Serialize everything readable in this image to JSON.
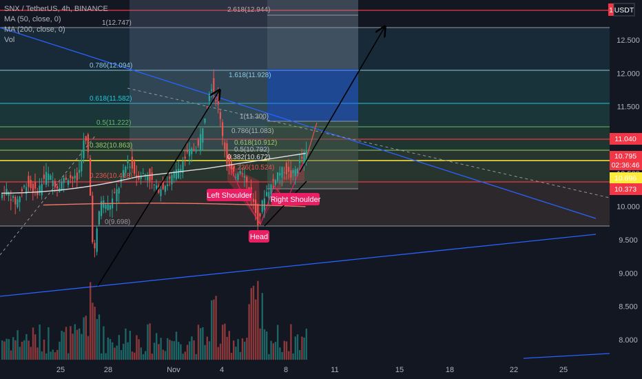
{
  "legend": {
    "symbol": "SNX / TetherUS, 4h, BINANCE",
    "ma50": "MA (50, close, 0)",
    "ma200": "MA (200, close, 0)",
    "vol": "Vol"
  },
  "currency": "USDT",
  "currency_badge": "1",
  "colors": {
    "background": "#131722",
    "up": "#26a69a",
    "down": "#ef5350",
    "ma50": "#e0e0e0",
    "ma200": "#f2776a",
    "trendline": "#2962ff",
    "arrow": "#000000",
    "price_tag": "#f23645",
    "label_bg": "#e91e63"
  },
  "chart_data": {
    "type": "candlestick",
    "x_axis_ticks": [
      "25",
      "28",
      "Nov",
      "4",
      "8",
      "11",
      "15",
      "18",
      "22",
      "25"
    ],
    "y_axis_ticks": [
      "8.000",
      "8.500",
      "9.000",
      "9.500",
      "10.000",
      "10.500",
      "11.000",
      "11.500",
      "12.000",
      "12.500"
    ],
    "ylim": [
      7.7,
      13.1
    ],
    "price_tags": [
      {
        "value": "11.040",
        "color": "#f23645"
      },
      {
        "value": "10.795",
        "color": "#f23645",
        "countdown": "02:36:46"
      },
      {
        "value": "10.696",
        "color": "#ffeb3b"
      },
      {
        "value": "10.373",
        "color": "#f23645"
      }
    ],
    "fib_left": [
      {
        "label": "0.786(12.094)",
        "price": 12.094
      },
      {
        "label": "0.618(11.582)",
        "price": 11.582
      },
      {
        "label": "0.5(11.222)",
        "price": 11.222
      },
      {
        "label": "0.382(10.863)",
        "price": 10.863
      },
      {
        "label": "0.236(10.418)",
        "price": 10.418
      },
      {
        "label": "0(9.698)",
        "price": 9.698
      }
    ],
    "fib_top": [
      {
        "label": "2.618(12.944)",
        "price": 12.944
      },
      {
        "label": "1(12.747)",
        "price": 12.747
      }
    ],
    "fib_right": [
      {
        "label": "1.618(11.928)",
        "price": 11.928
      },
      {
        "label": "1(11.300)",
        "price": 11.3
      },
      {
        "label": "0.786(11.083)",
        "price": 11.083
      },
      {
        "label": "0.618(10.912)",
        "price": 10.912
      },
      {
        "label": "0.5(10.792)",
        "price": 10.792
      },
      {
        "label": "0.382(10.672)",
        "price": 10.672
      },
      {
        "label": "0.236(10.524)",
        "price": 10.524
      }
    ],
    "pattern_labels": [
      "Left Shoulder",
      "Head",
      "Right Shoulder"
    ],
    "last_price": 10.795,
    "ma50_last": 10.4,
    "ma200_last": 10.0
  }
}
